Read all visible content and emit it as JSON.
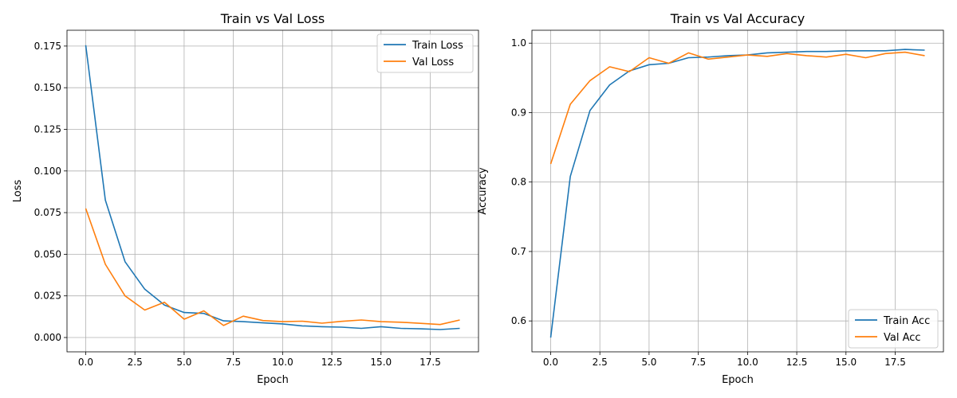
{
  "chart_data": [
    {
      "type": "line",
      "title": "Train vs Val Loss",
      "xlabel": "Epoch",
      "ylabel": "Loss",
      "xlim": [
        -0.95,
        19.95
      ],
      "ylim": [
        -0.0086,
        0.1845
      ],
      "grid": true,
      "legend_position": "upper right",
      "x_ticks": [
        0.0,
        2.5,
        5.0,
        7.5,
        10.0,
        12.5,
        15.0,
        17.5
      ],
      "x_tick_labels": [
        "0.0",
        "2.5",
        "5.0",
        "7.5",
        "10.0",
        "12.5",
        "15.0",
        "17.5"
      ],
      "y_ticks": [
        0.0,
        0.025,
        0.05,
        0.075,
        0.1,
        0.125,
        0.15,
        0.175
      ],
      "y_tick_labels": [
        "0.000",
        "0.025",
        "0.050",
        "0.075",
        "0.100",
        "0.125",
        "0.150",
        "0.175"
      ],
      "x": [
        0,
        1,
        2,
        3,
        4,
        5,
        6,
        7,
        8,
        9,
        10,
        11,
        12,
        13,
        14,
        15,
        16,
        17,
        18,
        19
      ],
      "series": [
        {
          "name": "Train Loss",
          "color": "#1f77b4",
          "values": [
            0.1755,
            0.0825,
            0.0455,
            0.029,
            0.0195,
            0.015,
            0.0145,
            0.01,
            0.0095,
            0.0088,
            0.0082,
            0.007,
            0.0065,
            0.0062,
            0.0055,
            0.0065,
            0.0055,
            0.0052,
            0.0048,
            0.0055
          ]
        },
        {
          "name": "Val Loss",
          "color": "#ff7f0e",
          "values": [
            0.0775,
            0.044,
            0.025,
            0.0165,
            0.0212,
            0.011,
            0.016,
            0.0072,
            0.0128,
            0.0102,
            0.0095,
            0.0098,
            0.0086,
            0.0097,
            0.0105,
            0.0095,
            0.0092,
            0.0085,
            0.0078,
            0.0105
          ]
        }
      ]
    },
    {
      "type": "line",
      "title": "Train vs Val Accuracy",
      "xlabel": "Epoch",
      "ylabel": "Accuracy",
      "xlim": [
        -0.95,
        19.95
      ],
      "ylim": [
        0.5555,
        1.0186
      ],
      "grid": true,
      "legend_position": "lower right",
      "x_ticks": [
        0.0,
        2.5,
        5.0,
        7.5,
        10.0,
        12.5,
        15.0,
        17.5
      ],
      "x_tick_labels": [
        "0.0",
        "2.5",
        "5.0",
        "7.5",
        "10.0",
        "12.5",
        "15.0",
        "17.5"
      ],
      "y_ticks": [
        0.6,
        0.7,
        0.8,
        0.9,
        1.0
      ],
      "y_tick_labels": [
        "0.6",
        "0.7",
        "0.8",
        "0.9",
        "1.0"
      ],
      "x": [
        0,
        1,
        2,
        3,
        4,
        5,
        6,
        7,
        8,
        9,
        10,
        11,
        12,
        13,
        14,
        15,
        16,
        17,
        18,
        19
      ],
      "series": [
        {
          "name": "Train Acc",
          "color": "#1f77b4",
          "values": [
            0.576,
            0.808,
            0.903,
            0.94,
            0.96,
            0.969,
            0.971,
            0.979,
            0.98,
            0.982,
            0.983,
            0.986,
            0.987,
            0.988,
            0.988,
            0.989,
            0.989,
            0.989,
            0.991,
            0.99
          ]
        },
        {
          "name": "Val Acc",
          "color": "#ff7f0e",
          "values": [
            0.826,
            0.912,
            0.946,
            0.966,
            0.959,
            0.979,
            0.971,
            0.986,
            0.977,
            0.98,
            0.983,
            0.981,
            0.985,
            0.982,
            0.98,
            0.984,
            0.979,
            0.985,
            0.987,
            0.982
          ]
        }
      ]
    }
  ]
}
